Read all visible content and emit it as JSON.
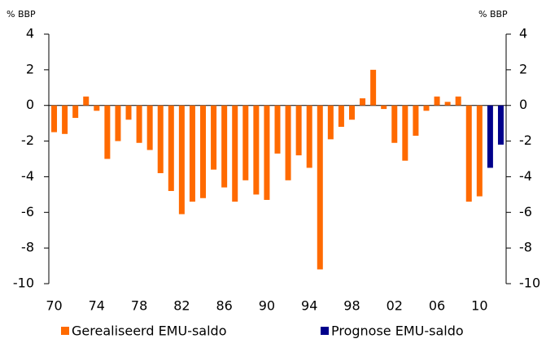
{
  "chart_data": {
    "type": "bar",
    "ylabel": "% BBP",
    "y2label": "% BBP",
    "categories": [
      "70",
      null,
      null,
      null,
      "74",
      null,
      null,
      null,
      "78",
      null,
      null,
      null,
      "82",
      null,
      null,
      null,
      "86",
      null,
      null,
      null,
      "90",
      null,
      null,
      null,
      "94",
      null,
      null,
      null,
      "98",
      null,
      null,
      null,
      "02",
      null,
      null,
      null,
      "06",
      null,
      null,
      null,
      "10",
      null,
      null
    ],
    "series": [
      {
        "name": "Gerealiseerd EMU-saldo",
        "color": "#ff6a00",
        "values": [
          -1.5,
          -1.6,
          -0.7,
          0.5,
          -0.3,
          -3.0,
          -2.0,
          -0.8,
          -2.1,
          -2.5,
          -3.8,
          -4.8,
          -6.1,
          -5.4,
          -5.2,
          -3.6,
          -4.6,
          -5.4,
          -4.2,
          -5.0,
          -5.3,
          -2.7,
          -4.2,
          -2.8,
          -3.5,
          -9.2,
          -1.9,
          -1.2,
          -0.8,
          0.4,
          2.0,
          -0.2,
          -2.1,
          -3.1,
          -1.7,
          -0.3,
          0.5,
          0.2,
          0.5,
          -5.4,
          -5.1,
          null,
          null
        ]
      },
      {
        "name": "Prognose EMU-saldo",
        "color": "#00008b",
        "values": [
          null,
          null,
          null,
          null,
          null,
          null,
          null,
          null,
          null,
          null,
          null,
          null,
          null,
          null,
          null,
          null,
          null,
          null,
          null,
          null,
          null,
          null,
          null,
          null,
          null,
          null,
          null,
          null,
          null,
          null,
          null,
          null,
          null,
          null,
          null,
          null,
          null,
          null,
          null,
          null,
          null,
          -3.5,
          -2.2
        ]
      }
    ],
    "ylim": [
      -10,
      4
    ],
    "yticks": [
      -10,
      -8,
      -6,
      -4,
      -2,
      0,
      2,
      4
    ],
    "y2lim": [
      -10,
      4
    ],
    "y2ticks": [
      -10,
      -8,
      -6,
      -4,
      -2,
      0,
      2,
      4
    ],
    "legend": "bottom"
  }
}
